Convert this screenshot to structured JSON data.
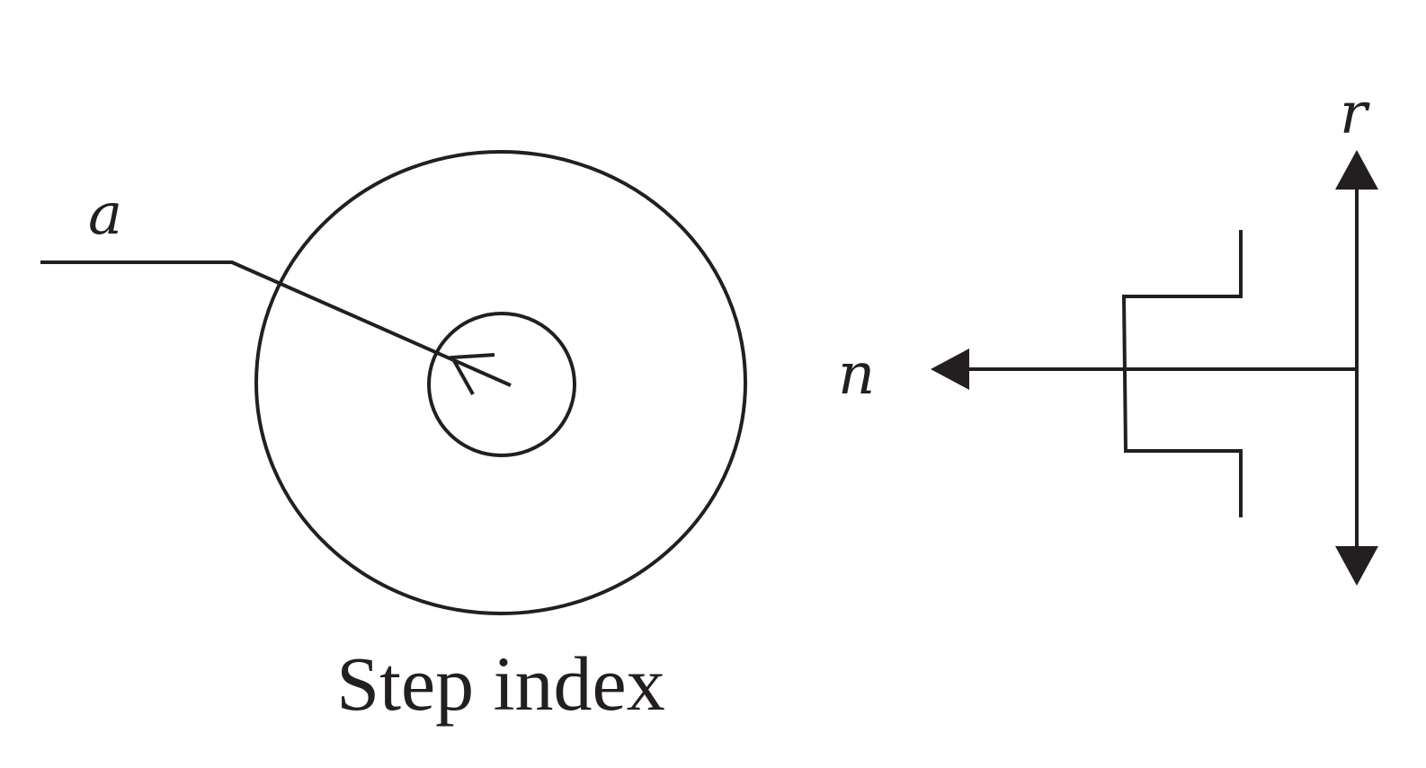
{
  "labels": {
    "radius_label": "a",
    "index_axis_label": "n",
    "radial_axis_label": "r",
    "caption": "Step index"
  },
  "colors": {
    "stroke": "#231f20",
    "cladding_fill": "#d3d3d5",
    "core_fill": "#dddee0",
    "text": "#231f20"
  }
}
